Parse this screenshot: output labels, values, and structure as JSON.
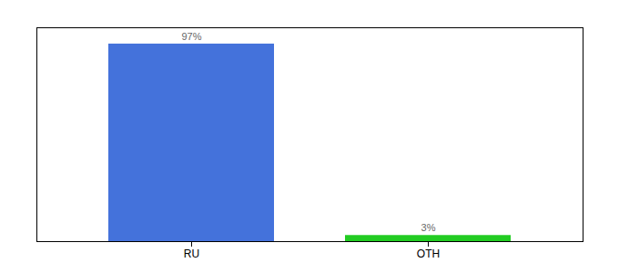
{
  "chart_data": {
    "type": "bar",
    "categories": [
      "RU",
      "OTH"
    ],
    "values": [
      97,
      3
    ],
    "colors": [
      "#4472db",
      "#22cc22"
    ],
    "value_labels": [
      "97%",
      "3%"
    ],
    "data_labels": true,
    "ylim": [
      0,
      105
    ],
    "tick_labels": "x"
  }
}
